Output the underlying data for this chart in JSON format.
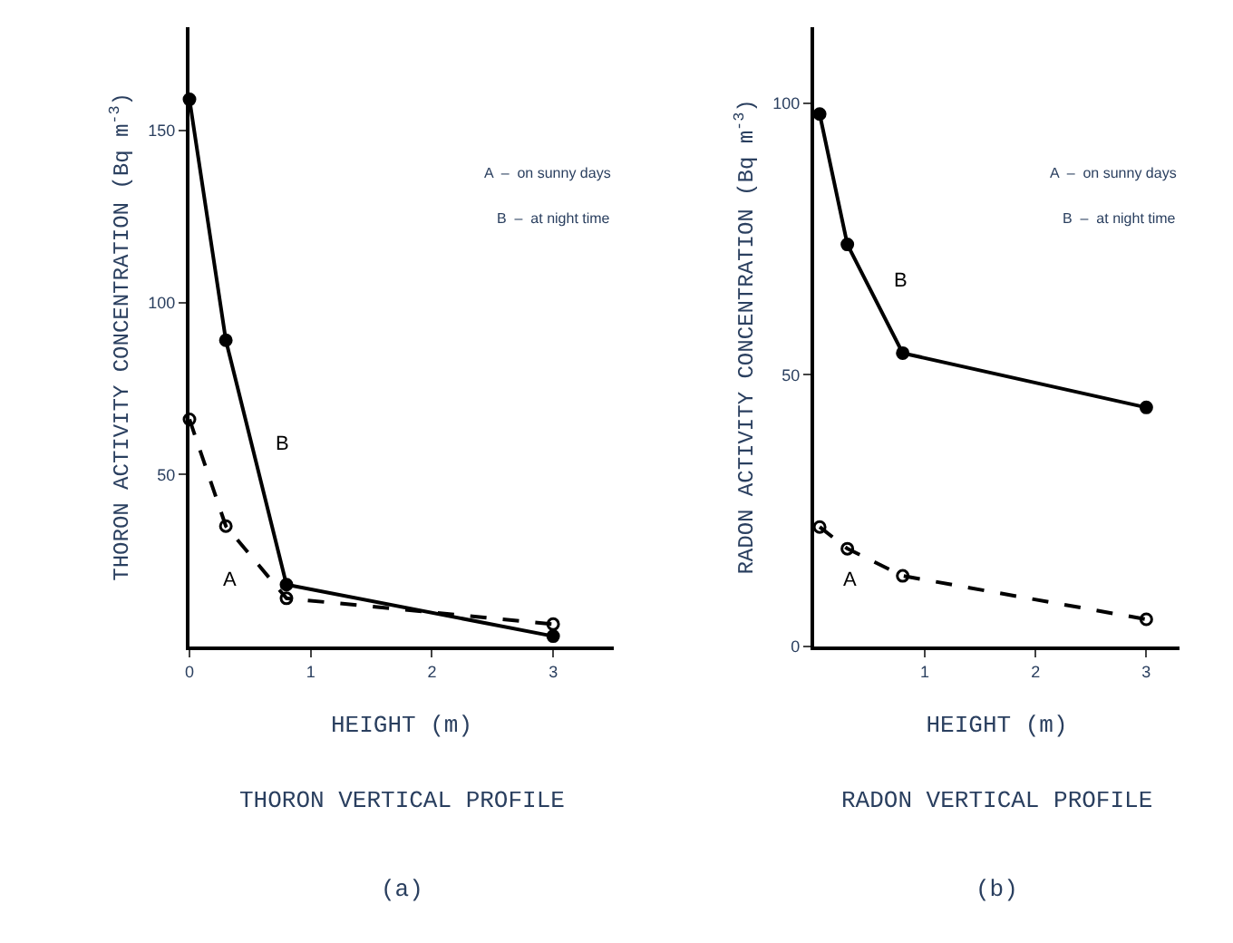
{
  "chart_data": [
    {
      "type": "line",
      "xlabel": "HEIGHT (m)",
      "ylabel": "THORON ACTIVITY CONCENTRATION (Bq m$^{-3}$)",
      "x": [
        0,
        0.3,
        0.8,
        3
      ],
      "xlim": [
        0,
        3.5
      ],
      "xticks": [
        0,
        1,
        2,
        3
      ],
      "ylim": [
        0,
        180
      ],
      "yticks": [
        50,
        100,
        150
      ],
      "series": [
        {
          "name": "B",
          "color": "#000000",
          "values": [
            159,
            89,
            18,
            3
          ],
          "marker": "circle",
          "line_style": "solid"
        },
        {
          "name": "A",
          "color": "#000000",
          "values": [
            66,
            35,
            14,
            6.5
          ],
          "marker": "circle-open",
          "line_style": "dashed"
        }
      ],
      "annotations": [
        "A  –  on sunny days",
        "B  –  at night time",
        "THORON VERTICAL PROFILE",
        "(a)"
      ]
    },
    {
      "type": "line",
      "xlabel": "HEIGHT (m)",
      "ylabel": "RADON ACTIVITY CONCENTRATION (Bq m$^{-3}$)",
      "x": [
        0.05,
        0.3,
        0.8,
        3
      ],
      "xlim": [
        0,
        3.3
      ],
      "xticks": [
        1,
        2,
        3
      ],
      "ylim": [
        0,
        114
      ],
      "yticks": [
        0,
        50,
        100
      ],
      "series": [
        {
          "name": "B",
          "color": "#000000",
          "values": [
            98,
            74,
            54,
            44
          ],
          "marker": "circle",
          "line_style": "solid"
        },
        {
          "name": "A",
          "color": "#000000",
          "values": [
            22,
            18,
            13,
            5
          ],
          "marker": "circle-open",
          "line_style": "dashed"
        }
      ],
      "annotations": [
        "A  –  on sunny days",
        "B  –  at night time",
        "RADON VERTICAL PROFILE",
        "(b)"
      ]
    }
  ]
}
